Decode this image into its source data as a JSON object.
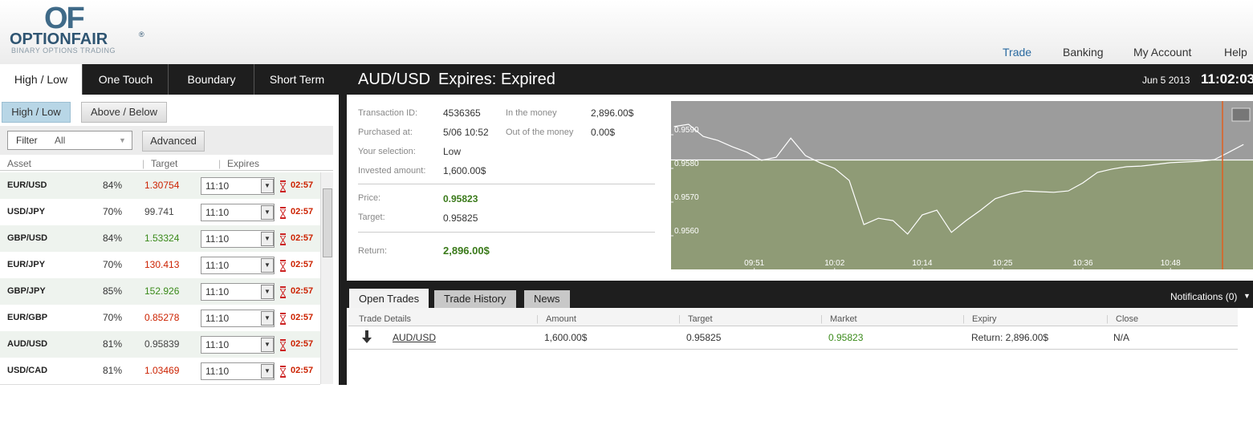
{
  "header": {
    "logo": "OF",
    "brand": "OPTIONFAIR",
    "trademark": "®",
    "tagline": "BINARY OPTIONS TRADING",
    "nav": [
      {
        "label": "Trade",
        "active": true
      },
      {
        "label": "Banking",
        "active": false
      },
      {
        "label": "My Account",
        "active": false
      },
      {
        "label": "Help",
        "active": false
      }
    ]
  },
  "left_panel": {
    "tabs": [
      "High / Low",
      "One Touch",
      "Boundary",
      "Short Term"
    ],
    "active_tab": 0,
    "subtabs": [
      "High / Low",
      "Above / Below"
    ],
    "active_subtab": 0,
    "filter_label": "Filter",
    "filter_value": "All",
    "advanced": "Advanced",
    "columns": [
      "Asset",
      "Target",
      "Expires"
    ],
    "assets": [
      {
        "asset": "EUR/USD",
        "payout": "84%",
        "target": "1.30754",
        "target_color": "#cc2200",
        "expiry": "11:10",
        "countdown": "02:57"
      },
      {
        "asset": "USD/JPY",
        "payout": "70%",
        "target": "99.741",
        "target_color": "#444444",
        "expiry": "11:10",
        "countdown": "02:57"
      },
      {
        "asset": "GBP/USD",
        "payout": "84%",
        "target": "1.53324",
        "target_color": "#3a8a1a",
        "expiry": "11:10",
        "countdown": "02:57"
      },
      {
        "asset": "EUR/JPY",
        "payout": "70%",
        "target": "130.413",
        "target_color": "#cc2200",
        "expiry": "11:10",
        "countdown": "02:57"
      },
      {
        "asset": "GBP/JPY",
        "payout": "85%",
        "target": "152.926",
        "target_color": "#3a8a1a",
        "expiry": "11:10",
        "countdown": "02:57"
      },
      {
        "asset": "EUR/GBP",
        "payout": "70%",
        "target": "0.85278",
        "target_color": "#cc2200",
        "expiry": "11:10",
        "countdown": "02:57"
      },
      {
        "asset": "AUD/USD",
        "payout": "81%",
        "target": "0.95839",
        "target_color": "#444444",
        "expiry": "11:10",
        "countdown": "02:57"
      },
      {
        "asset": "USD/CAD",
        "payout": "81%",
        "target": "1.03469",
        "target_color": "#cc2200",
        "expiry": "11:10",
        "countdown": "02:57"
      }
    ]
  },
  "trade": {
    "pair": "AUD/USD",
    "expires_label": "Expires:",
    "expires_value": "Expired",
    "date": "Jun 5 2013",
    "time": "11:02:03",
    "details": [
      {
        "label": "Transaction ID:",
        "value": "4536365"
      },
      {
        "label": "Purchased at:",
        "value": "5/06 10:52"
      },
      {
        "label": "Your selection:",
        "value": "Low"
      },
      {
        "label": "Invested amount:",
        "value": "1,600.00$"
      }
    ],
    "stats": [
      {
        "label": "In the money",
        "value": "2,896.00$"
      },
      {
        "label": "Out of the money",
        "value": "0.00$"
      }
    ],
    "price": {
      "label": "Price:",
      "value": "0.95823"
    },
    "target": {
      "label": "Target:",
      "value": "0.95825"
    },
    "return": {
      "label": "Return:",
      "value": "2,896.00$"
    }
  },
  "chart_data": {
    "type": "line",
    "xlim": [
      579.6,
      659.3
    ],
    "ylim": [
      0.955,
      0.96
    ],
    "xticks": [
      {
        "value": 591,
        "label": "09:51"
      },
      {
        "value": 602,
        "label": "10:02"
      },
      {
        "value": 614,
        "label": "10:14"
      },
      {
        "value": 625,
        "label": "10:25"
      },
      {
        "value": 636,
        "label": "10:36"
      },
      {
        "value": 648,
        "label": "10:48"
      }
    ],
    "yticks": [
      {
        "value": 0.956,
        "label": "0.9560"
      },
      {
        "value": 0.957,
        "label": "0.9570"
      },
      {
        "value": 0.958,
        "label": "0.9580"
      },
      {
        "value": 0.959,
        "label": "0.9590"
      }
    ],
    "strike": 0.95825,
    "color": "#ffffff",
    "above_color": "#9c9c9c",
    "below_color": "#8f9b76",
    "x": [
      580,
      582,
      584,
      586,
      588,
      590,
      592,
      594,
      596,
      598,
      600,
      602,
      604,
      606,
      608,
      610,
      612,
      614,
      616,
      618,
      620,
      622,
      624,
      626,
      628,
      630,
      632,
      634,
      636,
      638,
      640,
      642,
      644,
      646,
      648,
      650,
      652,
      654,
      656,
      658
    ],
    "values": [
      0.95924,
      0.95931,
      0.95895,
      0.95883,
      0.95864,
      0.95848,
      0.95824,
      0.95833,
      0.9589,
      0.95838,
      0.95817,
      0.958,
      0.95764,
      0.95633,
      0.95652,
      0.95645,
      0.95605,
      0.95662,
      0.95676,
      0.9561,
      0.95645,
      0.95676,
      0.9571,
      0.95724,
      0.95733,
      0.95731,
      0.95729,
      0.95733,
      0.95757,
      0.95788,
      0.95798,
      0.95805,
      0.95807,
      0.95812,
      0.95817,
      0.95819,
      0.95821,
      0.95826,
      0.95848,
      0.95871
    ]
  },
  "bottom": {
    "tabs": [
      "Open Trades",
      "Trade History",
      "News"
    ],
    "active_tab": 0,
    "notifications": "Notifications (0)",
    "columns": [
      "Trade Details",
      "Amount",
      "Target",
      "Market",
      "Expiry",
      "Close"
    ],
    "rows": [
      {
        "asset": "AUD/USD",
        "amount": "1,600.00$",
        "target": "0.95825",
        "market": "0.95823",
        "expiry": "Return: 2,896.00$",
        "close": "N/A"
      }
    ]
  }
}
